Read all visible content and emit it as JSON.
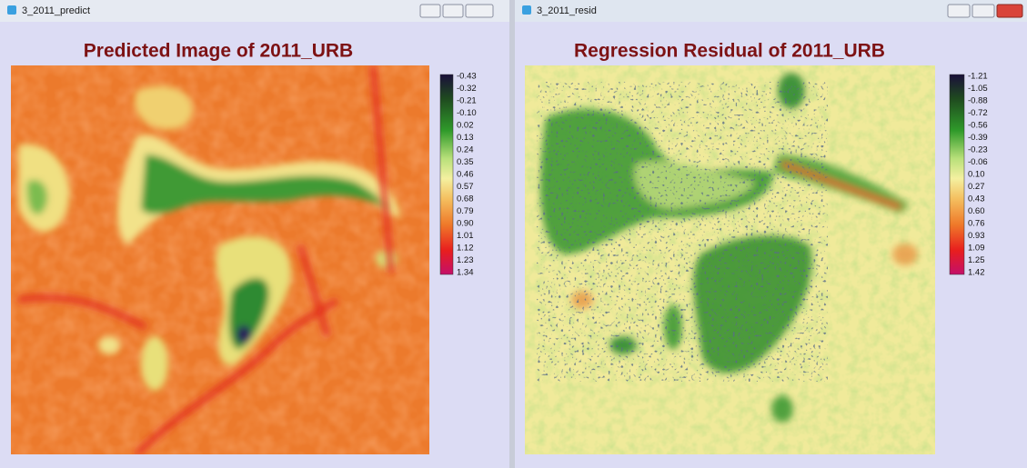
{
  "windows": [
    {
      "title": "3_2011_predict",
      "heading": "Predicted Image of 2011_URB",
      "legend": [
        "-0.43",
        "-0.32",
        "-0.21",
        "-0.10",
        "0.02",
        "0.13",
        "0.24",
        "0.35",
        "0.46",
        "0.57",
        "0.68",
        "0.79",
        "0.90",
        "1.01",
        "1.12",
        "1.23",
        "1.34"
      ]
    },
    {
      "title": "3_2011_resid",
      "heading": "Regression Residual of 2011_URB",
      "legend": [
        "-1.21",
        "-1.05",
        "-0.88",
        "-0.72",
        "-0.56",
        "-0.39",
        "-0.23",
        "-0.06",
        "0.10",
        "0.27",
        "0.43",
        "0.60",
        "0.76",
        "0.93",
        "1.09",
        "1.25",
        "1.42"
      ]
    }
  ]
}
